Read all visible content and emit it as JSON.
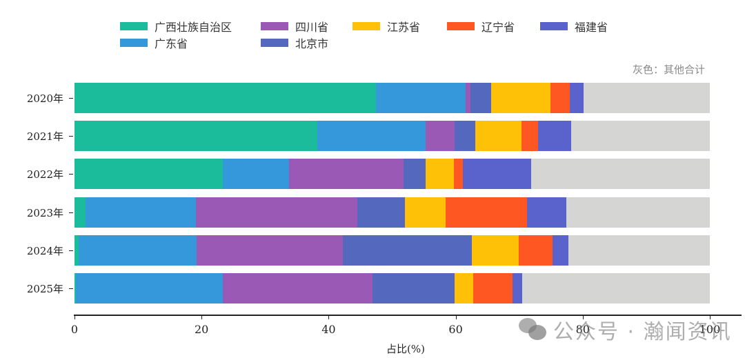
{
  "chart_data": {
    "type": "bar",
    "orientation": "horizontal",
    "stacked": true,
    "title": "",
    "xlabel": "占比(%)",
    "ylabel": "",
    "xlim": [
      0,
      100
    ],
    "x_ticks": [
      0,
      20,
      40,
      60,
      80,
      100
    ],
    "categories": [
      "2020年",
      "2021年",
      "2022年",
      "2023年",
      "2024年",
      "2025年"
    ],
    "series": [
      {
        "name": "广西壮族自治区",
        "color": "#1abc9c",
        "values": [
          47.5,
          38.2,
          23.3,
          1.7,
          0.7,
          0.2
        ]
      },
      {
        "name": "广东省",
        "color": "#3498db",
        "values": [
          14.1,
          17.1,
          10.5,
          17.4,
          18.5,
          23.1
        ]
      },
      {
        "name": "四川省",
        "color": "#9b59b6",
        "values": [
          0.7,
          4.5,
          18.0,
          25.4,
          23.0,
          23.6
        ]
      },
      {
        "name": "北京市",
        "color": "#5469bd",
        "values": [
          3.3,
          3.3,
          3.5,
          7.5,
          20.3,
          12.9
        ]
      },
      {
        "name": "江苏省",
        "color": "#ffc107",
        "values": [
          9.3,
          7.3,
          4.4,
          6.4,
          7.4,
          3.0
        ]
      },
      {
        "name": "辽宁省",
        "color": "#ff5722",
        "values": [
          3.1,
          2.6,
          1.4,
          12.8,
          5.4,
          6.1
        ]
      },
      {
        "name": "福建省",
        "color": "#5a62cc",
        "values": [
          2.1,
          5.2,
          10.8,
          6.2,
          2.4,
          1.6
        ]
      },
      {
        "name": "其他合计",
        "color": "#d5d5d3",
        "values": [
          19.9,
          21.8,
          28.1,
          22.6,
          22.3,
          29.5
        ]
      }
    ],
    "legend_position": "top",
    "grid": false,
    "annotations": [
      "灰色：其他合计"
    ]
  },
  "legend": {
    "items": [
      {
        "label": "广西壮族自治区",
        "color": "#1abc9c"
      },
      {
        "label": "广东省",
        "color": "#3498db"
      },
      {
        "label": "四川省",
        "color": "#9b59b6"
      },
      {
        "label": "北京市",
        "color": "#5469bd"
      },
      {
        "label": "江苏省",
        "color": "#ffc107"
      },
      {
        "label": "辽宁省",
        "color": "#ff5722"
      },
      {
        "label": "福建省",
        "color": "#5a62cc"
      }
    ]
  },
  "note": "灰色：其他合计",
  "axis": {
    "xlabel": "占比(%)",
    "x_tick_labels": [
      "0",
      "20",
      "40",
      "60",
      "80",
      "100"
    ]
  },
  "watermark": {
    "text": "公众号 · 瀚闻资讯",
    "icon": "wechat-icon"
  }
}
